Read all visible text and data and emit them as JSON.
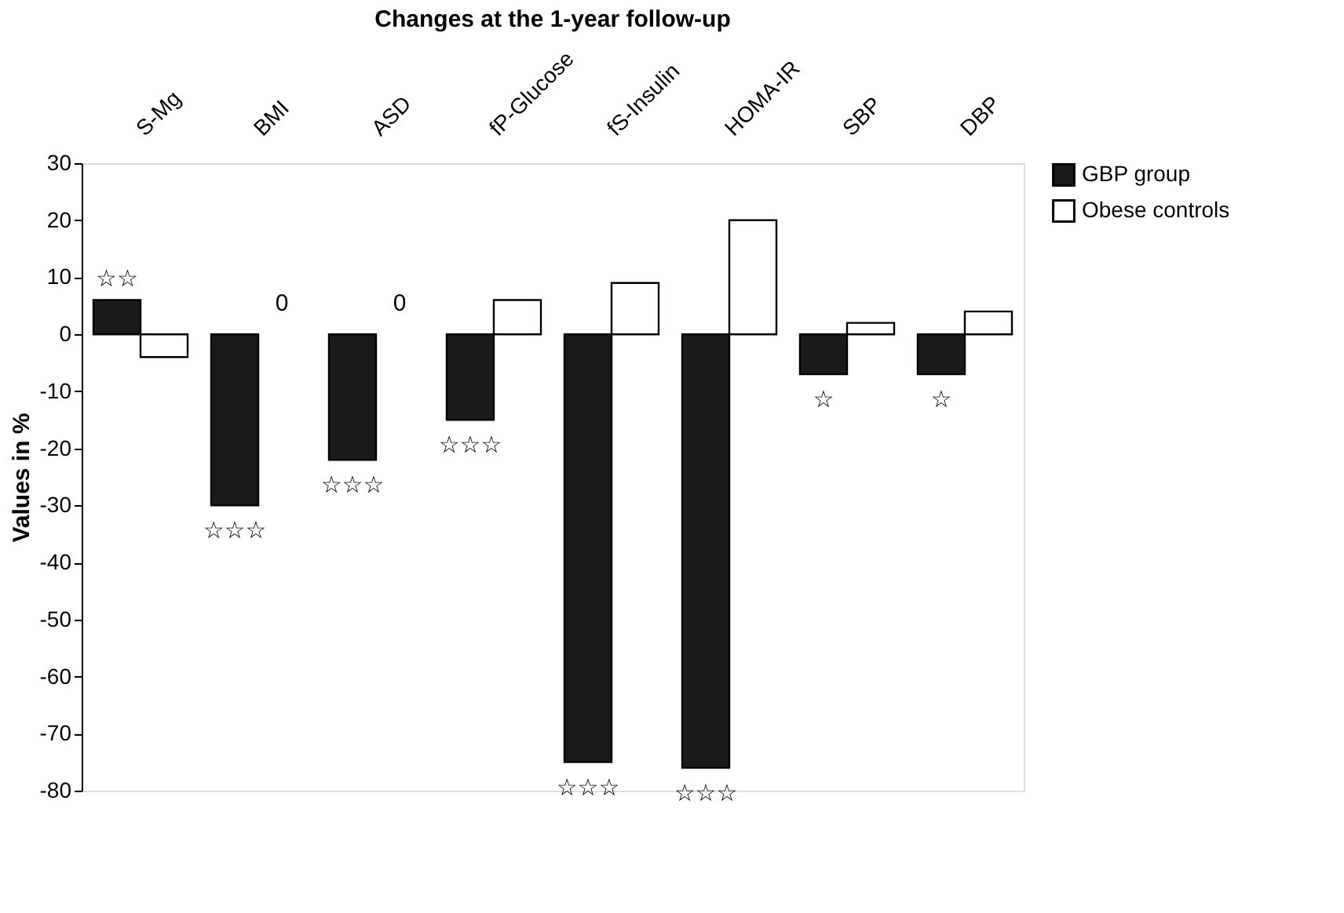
{
  "chart_data": {
    "type": "bar",
    "title": "Changes at the 1-year follow-up",
    "ylabel": "Values in %",
    "categories": [
      "S-Mg",
      "BMI",
      "ASD",
      "fP-Glucose",
      "fS-Insulin",
      "HOMA-IR",
      "SBP",
      "DBP"
    ],
    "series": [
      {
        "name": "GBP group",
        "color": "#1a1a1a",
        "values": [
          6,
          -30,
          -22,
          -15,
          -75,
          -76,
          -7,
          -7
        ]
      },
      {
        "name": "Obese controls",
        "color": "#ffffff",
        "values": [
          -4,
          0,
          0,
          6,
          9,
          20,
          2,
          4
        ],
        "value_labels": [
          null,
          "0",
          "0",
          null,
          null,
          null,
          null,
          null
        ]
      }
    ],
    "ylim": [
      -80,
      30
    ],
    "yticks": [
      30,
      20,
      10,
      0,
      -10,
      -20,
      -30,
      -40,
      -50,
      -60,
      -70,
      -80
    ],
    "grid": false,
    "legend": "right",
    "annotations": [
      "☆☆",
      "☆☆☆",
      "☆☆☆",
      "☆☆☆",
      "☆☆☆",
      "☆☆☆",
      "☆",
      "☆"
    ]
  }
}
